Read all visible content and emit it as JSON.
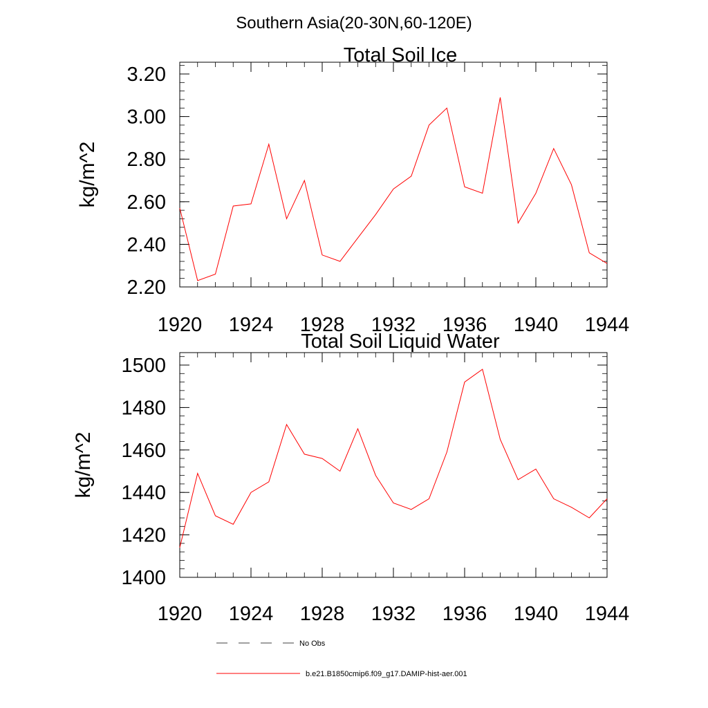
{
  "figure": {
    "super_title": "Southern Asia(20-30N,60-120E)"
  },
  "colors": {
    "series": "#ff0000",
    "axis": "#000000",
    "no_obs_line": "#000000"
  },
  "chart_data": [
    {
      "type": "line",
      "title": "Total Soil Ice",
      "xlabel": "",
      "ylabel": "kg/m^2",
      "xlim": [
        1920,
        1944
      ],
      "ylim": [
        2.2,
        3.25
      ],
      "x_ticks": [
        1920,
        1924,
        1928,
        1932,
        1936,
        1940,
        1944
      ],
      "x_tick_labels": [
        "1920",
        "1924",
        "1928",
        "1932",
        "1936",
        "1940",
        "1944"
      ],
      "y_ticks": [
        2.2,
        2.4,
        2.6,
        2.8,
        3.0,
        3.2
      ],
      "y_tick_labels": [
        "2.20",
        "2.40",
        "2.60",
        "2.80",
        "3.00",
        "3.20"
      ],
      "grid": false,
      "x": [
        1920,
        1921,
        1922,
        1923,
        1924,
        1925,
        1926,
        1927,
        1928,
        1929,
        1930,
        1931,
        1932,
        1933,
        1934,
        1935,
        1936,
        1937,
        1938,
        1939,
        1940,
        1941,
        1942,
        1943,
        1944
      ],
      "series": [
        {
          "name": "b.e21.B1850cmip6.f09_g17.DAMIP-hist-aer.001",
          "values": [
            2.57,
            2.23,
            2.26,
            2.58,
            2.59,
            2.87,
            2.52,
            2.7,
            2.35,
            2.32,
            2.43,
            2.54,
            2.66,
            2.72,
            2.96,
            3.04,
            2.67,
            2.64,
            3.09,
            2.5,
            2.64,
            2.85,
            2.68,
            2.36,
            2.31
          ]
        }
      ]
    },
    {
      "type": "line",
      "title": "Total Soil Liquid Water",
      "xlabel": "",
      "ylabel": "kg/m^2",
      "xlim": [
        1920,
        1944
      ],
      "ylim": [
        1400,
        1505
      ],
      "x_ticks": [
        1920,
        1924,
        1928,
        1932,
        1936,
        1940,
        1944
      ],
      "x_tick_labels": [
        "1920",
        "1924",
        "1928",
        "1932",
        "1936",
        "1940",
        "1944"
      ],
      "y_ticks": [
        1400,
        1420,
        1440,
        1460,
        1480,
        1500
      ],
      "y_tick_labels": [
        "1400",
        "1420",
        "1440",
        "1460",
        "1480",
        "1500"
      ],
      "grid": false,
      "x": [
        1920,
        1921,
        1922,
        1923,
        1924,
        1925,
        1926,
        1927,
        1928,
        1929,
        1930,
        1931,
        1932,
        1933,
        1934,
        1935,
        1936,
        1937,
        1938,
        1939,
        1940,
        1941,
        1942,
        1943,
        1944
      ],
      "series": [
        {
          "name": "b.e21.B1850cmip6.f09_g17.DAMIP-hist-aer.001",
          "values": [
            1414,
            1449,
            1429,
            1425,
            1440,
            1445,
            1472,
            1458,
            1456,
            1450,
            1470,
            1448,
            1435,
            1432,
            1437,
            1459,
            1492,
            1498,
            1465,
            1446,
            1451,
            1437,
            1433,
            1428,
            1437
          ]
        }
      ]
    }
  ],
  "legend": {
    "placement": "bottom",
    "items": [
      {
        "label": "No Obs",
        "style": "dashed"
      },
      {
        "label": "b.e21.B1850cmip6.f09_g17.DAMIP-hist-aer.001",
        "style": "solid"
      }
    ]
  }
}
